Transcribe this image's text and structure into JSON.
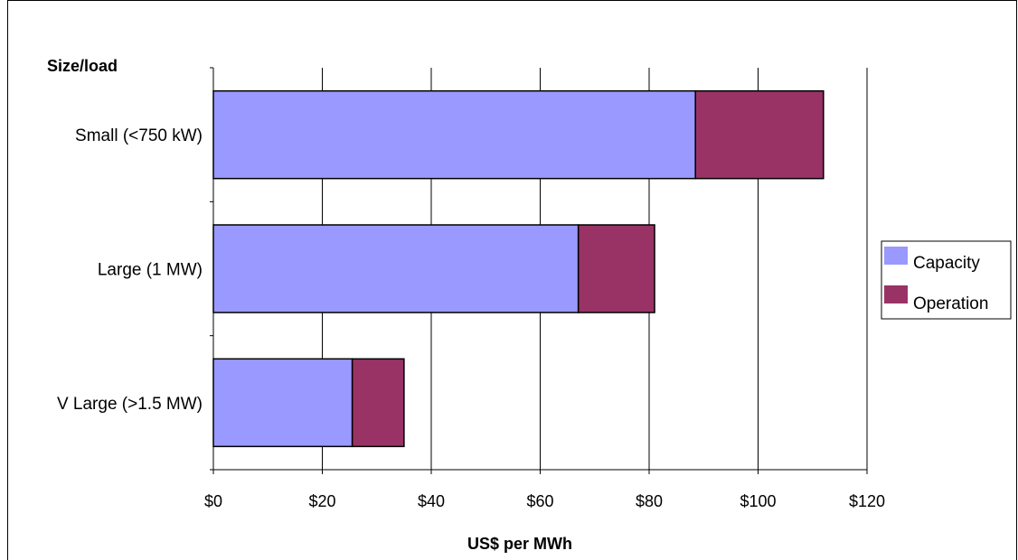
{
  "chart_data": {
    "type": "bar",
    "orientation": "horizontal",
    "stacked": true,
    "ytitle": "Size/load",
    "xlabel": "US$ per MWh",
    "categories": [
      "Small (<750 kW)",
      "Large (1 MW)",
      "V Large (>1.5 MW)"
    ],
    "series": [
      {
        "name": "Capacity",
        "values": [
          88.5,
          67,
          25.5
        ],
        "color": "#9999ff"
      },
      {
        "name": "Operation",
        "values": [
          23.5,
          14,
          9.5
        ],
        "color": "#993366"
      }
    ],
    "xlim": [
      0,
      120
    ],
    "xticks": [
      0,
      20,
      40,
      60,
      80,
      100,
      120
    ],
    "xtick_labels": [
      "$0",
      "$20",
      "$40",
      "$60",
      "$80",
      "$100",
      "$120"
    ],
    "grid": true,
    "legend_position": "right"
  }
}
